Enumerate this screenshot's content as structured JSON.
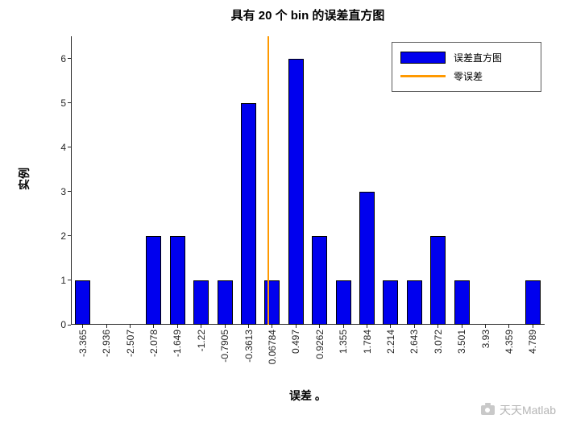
{
  "chart_data": {
    "type": "bar",
    "title": "具有 20 个 bin 的误差直方图",
    "xlabel": "误差 。",
    "ylabel": "实例",
    "categories": [
      "-3.365",
      "-2.936",
      "-2.507",
      "-2.078",
      "-1.649",
      "-1.22",
      "-0.7905",
      "-0.3613",
      "0.06784",
      "0.497",
      "0.9262",
      "1.355",
      "1.784",
      "2.214",
      "2.643",
      "3.072",
      "3.501",
      "3.93",
      "4.359",
      "4.789"
    ],
    "bin_centers": [
      -3.365,
      -2.936,
      -2.507,
      -2.078,
      -1.649,
      -1.22,
      -0.7905,
      -0.3613,
      0.06784,
      0.497,
      0.9262,
      1.355,
      1.784,
      2.214,
      2.643,
      3.072,
      3.501,
      3.93,
      4.359,
      4.789
    ],
    "values": [
      1,
      0,
      0,
      2,
      2,
      1,
      1,
      5,
      1,
      6,
      2,
      1,
      3,
      1,
      1,
      2,
      1,
      0,
      0,
      1
    ],
    "yticks": [
      0,
      1,
      2,
      3,
      4,
      5,
      6
    ],
    "ylim": [
      0,
      6.5
    ],
    "zero_line_x": 0,
    "bar_color": "#0000ee",
    "zero_line_color": "#ff9900",
    "legend_position": "top-right",
    "legend": [
      "误差直方图",
      "零误差"
    ],
    "grid": false
  },
  "legend": {
    "hist_label": "误差直方图",
    "zero_label": "零误差"
  },
  "watermark": {
    "text": "天天Matlab"
  }
}
